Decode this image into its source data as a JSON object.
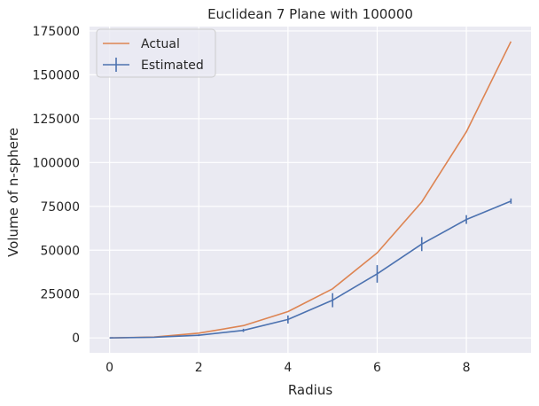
{
  "chart_data": {
    "type": "line",
    "title": "Euclidean 7 Plane with 100000",
    "xlabel": "Radius",
    "ylabel": "Volume of n-sphere",
    "xlim": [
      -0.45,
      9.45
    ],
    "ylim": [
      -8500,
      177500
    ],
    "x_ticks": [
      0,
      2,
      4,
      6,
      8
    ],
    "y_ticks": [
      0,
      25000,
      50000,
      75000,
      100000,
      125000,
      150000,
      175000
    ],
    "grid": true,
    "legend_position": "top-left",
    "x": [
      0,
      1,
      2,
      3,
      4,
      5,
      6,
      7,
      8,
      9
    ],
    "series": [
      {
        "name": "Actual",
        "color": "#dd8452",
        "values": [
          0,
          500,
          2700,
          7000,
          15000,
          28000,
          48500,
          77500,
          117500,
          169000
        ]
      },
      {
        "name": "Estimated",
        "color": "#4c72b0",
        "values": [
          0,
          400,
          1500,
          4300,
          10500,
          21500,
          36500,
          53500,
          67500,
          78000
        ],
        "errors": [
          0,
          200,
          500,
          900,
          2300,
          4000,
          5000,
          4000,
          2500,
          1500
        ]
      }
    ]
  }
}
